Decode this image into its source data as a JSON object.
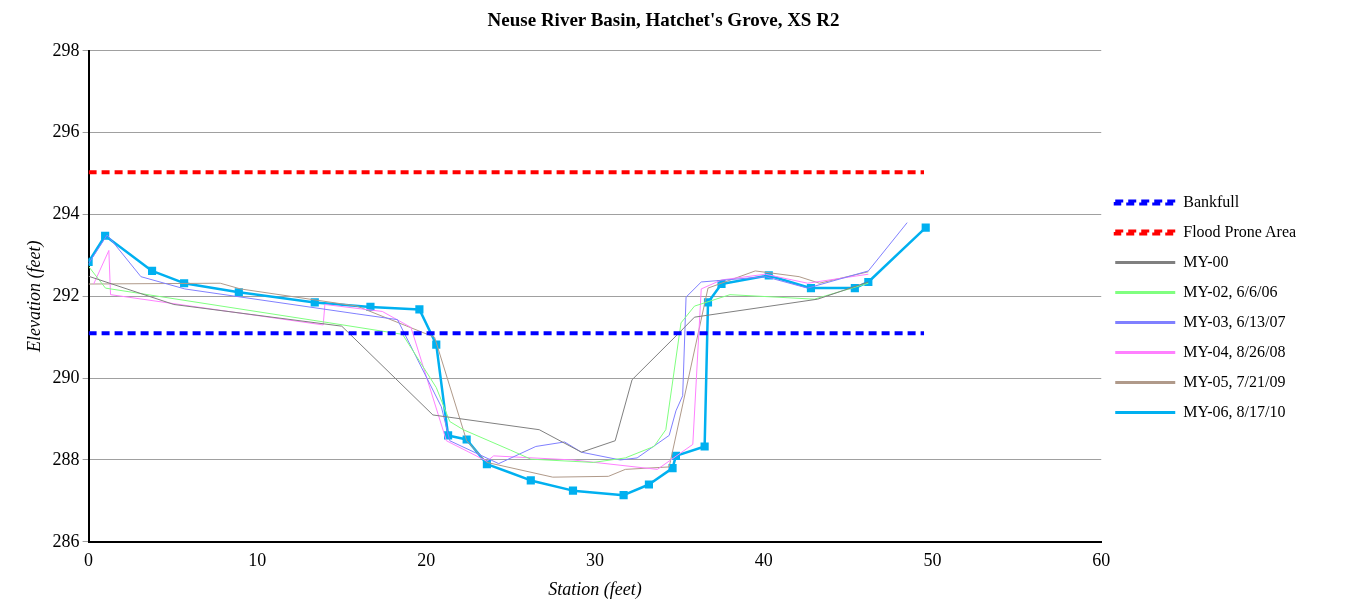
{
  "chart_data": {
    "type": "line",
    "title": "Neuse River Basin, Hatchet's Grove, XS R2",
    "xlabel": "Station (feet)",
    "ylabel": "Elevation (feet)",
    "xlim": [
      0,
      60
    ],
    "xticks": [
      0,
      10,
      20,
      30,
      40,
      50,
      60
    ],
    "ylim": [
      286,
      298
    ],
    "yticks": [
      286,
      288,
      290,
      292,
      294,
      296,
      298
    ],
    "grid": "y",
    "legend": "right",
    "marker": "none",
    "series": [
      {
        "name": "Bankfull",
        "color": "#0000ff",
        "line_style": "dashed",
        "x": [
          0,
          49.5
        ],
        "values": [
          291.1,
          291.1
        ]
      },
      {
        "name": "Flood Prone Area",
        "color": "#ff0000",
        "line_style": "dashed",
        "x": [
          0,
          49.5
        ],
        "values": [
          295.03,
          295.03
        ]
      },
      {
        "name": "MY-00",
        "color": "#808080",
        "x": [
          0,
          5.05,
          15,
          20.4,
          26.7,
          29.2,
          31.2,
          32.2,
          34.9,
          35.9,
          43.2,
          46.2
        ],
        "values": [
          292.49,
          291.8,
          291.27,
          289.1,
          288.74,
          288.19,
          288.47,
          289.96,
          291.07,
          291.49,
          291.93,
          292.35
        ]
      },
      {
        "name": "MY-02, 6/6/06",
        "color": "#80ff80",
        "x": [
          0,
          1,
          14.3,
          18.6,
          20.6,
          21.4,
          22.2,
          25,
          26.2,
          29.9,
          31.8,
          33.5,
          34.2,
          35.1,
          35.9,
          38,
          43,
          46.2
        ],
        "values": [
          292.73,
          292.2,
          291.35,
          291.07,
          289.77,
          288.94,
          288.74,
          288.24,
          288.02,
          287.94,
          288.05,
          288.33,
          288.74,
          291.35,
          291.76,
          292.04,
          291.93,
          292.32
        ]
      },
      {
        "name": "MY-03, 6/13/07",
        "color": "#8080ff",
        "x": [
          0,
          1.1,
          3.1,
          5.7,
          15.9,
          18.3,
          20.9,
          21.4,
          24.3,
          26.5,
          28.2,
          29.2,
          31.5,
          32.5,
          34.4,
          34.8,
          35.2,
          35.4,
          36.3,
          40.1,
          42.6,
          46.2,
          48.5
        ],
        "values": [
          292.8,
          293.5,
          292.48,
          292.18,
          291.57,
          291.43,
          289.3,
          288.47,
          287.91,
          288.33,
          288.44,
          288.19,
          288,
          288.05,
          288.6,
          289.2,
          289.57,
          291.98,
          292.35,
          292.48,
          292.2,
          292.62,
          293.8
        ]
      },
      {
        "name": "MY-04, 8/26/08",
        "color": "#ff80ff",
        "x": [
          0.3,
          1.2,
          1.3,
          13.9,
          14,
          17.4,
          19.1,
          21.2,
          23.6,
          24,
          28.7,
          33.7,
          35.8,
          36.3,
          37.5,
          40.1,
          42.6,
          46.2
        ],
        "values": [
          292.3,
          293.12,
          292.04,
          291.3,
          291.8,
          291.63,
          291.24,
          288.47,
          287.97,
          288.1,
          288,
          287.77,
          288.38,
          292.18,
          292.4,
          292.54,
          292.32,
          292.54
        ]
      },
      {
        "name": "MY-05, 7/21/09",
        "color": "#b09a8a",
        "x": [
          0,
          7.8,
          9,
          15.9,
          20.5,
          22.4,
          23.6,
          27.5,
          30.8,
          31.8,
          34.4,
          36.7,
          39.5,
          42.1,
          43.3,
          46.2
        ],
        "values": [
          292.3,
          292.32,
          292.18,
          291.76,
          291,
          288.47,
          287.94,
          287.58,
          287.6,
          287.77,
          287.83,
          292.2,
          292.62,
          292.48,
          292.32,
          292.6
        ]
      },
      {
        "name": "MY-06, 8/17/10",
        "color": "#00b0f0",
        "marker": "square",
        "x": [
          0,
          0.98,
          3.76,
          5.66,
          8.9,
          13.4,
          16.7,
          19.6,
          20.6,
          21.3,
          22.4,
          23.6,
          26.2,
          28.7,
          31.7,
          33.2,
          34.6,
          34.8,
          36.5,
          36.7,
          37.5,
          40.3,
          42.8,
          45.4,
          46.2,
          49.6
        ],
        "values": [
          292.84,
          293.48,
          292.62,
          292.32,
          292.1,
          291.85,
          291.74,
          291.68,
          290.82,
          288.6,
          288.5,
          287.9,
          287.5,
          287.25,
          287.14,
          287.4,
          287.8,
          288.1,
          288.33,
          291.85,
          292.3,
          292.51,
          292.2,
          292.2,
          292.35,
          293.68
        ]
      }
    ]
  }
}
